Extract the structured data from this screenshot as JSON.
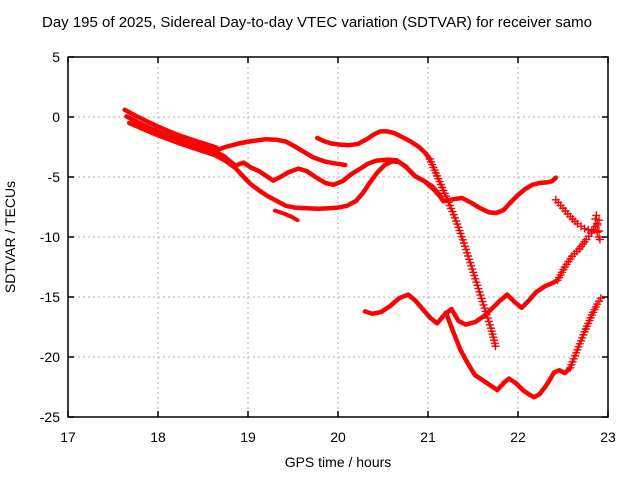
{
  "header": {
    "title": "Day 195 of 2025, Sidereal Day-to-day VTEC variation (SDTVAR) for receiver samo"
  },
  "chart_data": {
    "type": "line",
    "title": "Day 195 of 2025, Sidereal Day-to-day VTEC variation (SDTVAR) for receiver samo",
    "xlabel": "GPS time / hours",
    "ylabel": "SDTVAR / TECUs",
    "xlim": [
      17,
      23
    ],
    "ylim": [
      -25,
      5
    ],
    "xticks": [
      17,
      18,
      19,
      20,
      21,
      22,
      23
    ],
    "yticks": [
      5,
      0,
      -5,
      -10,
      -15,
      -20,
      -25
    ],
    "grid": true,
    "legend_position": "none",
    "series_color": "#ff0000",
    "grid_color": "#b0b0b0",
    "border_color": "#000000",
    "series": [
      {
        "name": "rising-bundle-upper",
        "style": "line",
        "width": 4.5,
        "points": [
          [
            17.63,
            0.6
          ],
          [
            17.74,
            0.15
          ],
          [
            17.86,
            -0.3
          ],
          [
            18.0,
            -0.8
          ],
          [
            18.14,
            -1.25
          ],
          [
            18.28,
            -1.65
          ],
          [
            18.42,
            -2.0
          ],
          [
            18.55,
            -2.3
          ],
          [
            18.65,
            -2.55
          ]
        ]
      },
      {
        "name": "rising-bundle-mid",
        "style": "line",
        "width": 4.5,
        "points": [
          [
            17.65,
            0.05
          ],
          [
            17.78,
            -0.45
          ],
          [
            17.92,
            -0.95
          ],
          [
            18.06,
            -1.4
          ],
          [
            18.2,
            -1.8
          ],
          [
            18.34,
            -2.15
          ],
          [
            18.48,
            -2.5
          ],
          [
            18.6,
            -2.8
          ],
          [
            18.72,
            -3.2
          ],
          [
            18.86,
            -4.05
          ]
        ]
      },
      {
        "name": "rising-bundle-lower",
        "style": "line",
        "width": 4.5,
        "points": [
          [
            17.68,
            -0.5
          ],
          [
            17.82,
            -0.95
          ],
          [
            17.96,
            -1.4
          ],
          [
            18.1,
            -1.8
          ],
          [
            18.24,
            -2.2
          ],
          [
            18.38,
            -2.55
          ],
          [
            18.52,
            -2.9
          ],
          [
            18.64,
            -3.2
          ],
          [
            18.75,
            -3.65
          ],
          [
            18.86,
            -4.25
          ]
        ]
      },
      {
        "name": "upper-branch",
        "style": "line",
        "width": 4.5,
        "points": [
          [
            18.62,
            -2.85
          ],
          [
            18.75,
            -2.5
          ],
          [
            18.9,
            -2.2
          ],
          [
            19.05,
            -2.0
          ],
          [
            19.2,
            -1.85
          ],
          [
            19.32,
            -1.9
          ],
          [
            19.42,
            -2.05
          ],
          [
            19.52,
            -2.45
          ],
          [
            19.62,
            -2.9
          ],
          [
            19.72,
            -3.35
          ],
          [
            19.85,
            -3.7
          ],
          [
            19.95,
            -3.85
          ],
          [
            20.08,
            -4.0
          ]
        ]
      },
      {
        "name": "late-top-arc",
        "style": "line",
        "width": 4.5,
        "points": [
          [
            19.77,
            -1.75
          ],
          [
            19.84,
            -2.0
          ],
          [
            19.92,
            -2.2
          ],
          [
            20.02,
            -2.3
          ],
          [
            20.12,
            -2.35
          ],
          [
            20.22,
            -2.25
          ],
          [
            20.32,
            -1.85
          ],
          [
            20.4,
            -1.45
          ],
          [
            20.47,
            -1.2
          ],
          [
            20.55,
            -1.2
          ],
          [
            20.63,
            -1.35
          ],
          [
            20.72,
            -1.7
          ],
          [
            20.82,
            -2.1
          ],
          [
            20.9,
            -2.5
          ],
          [
            20.97,
            -3.0
          ],
          [
            21.02,
            -3.5
          ]
        ]
      },
      {
        "name": "late-top-arc-steep-fall",
        "style": "plus",
        "width": 1.4,
        "points": [
          [
            21.02,
            -3.5
          ],
          [
            21.1,
            -4.9
          ],
          [
            21.2,
            -6.6
          ],
          [
            21.3,
            -8.4
          ],
          [
            21.4,
            -10.5
          ],
          [
            21.48,
            -12.4
          ],
          [
            21.56,
            -14.3
          ],
          [
            21.64,
            -16.2
          ],
          [
            21.7,
            -17.6
          ],
          [
            21.75,
            -19.1
          ]
        ]
      },
      {
        "name": "mid-wavy-branch",
        "style": "line",
        "width": 4.5,
        "points": [
          [
            18.86,
            -4.05
          ],
          [
            18.95,
            -3.8
          ],
          [
            19.03,
            -4.2
          ],
          [
            19.12,
            -4.5
          ],
          [
            19.2,
            -4.9
          ],
          [
            19.28,
            -5.3
          ],
          [
            19.36,
            -5.0
          ],
          [
            19.45,
            -4.6
          ],
          [
            19.56,
            -4.3
          ],
          [
            19.65,
            -4.5
          ],
          [
            19.75,
            -5.0
          ],
          [
            19.86,
            -5.5
          ],
          [
            19.95,
            -5.65
          ],
          [
            20.05,
            -5.35
          ],
          [
            20.15,
            -4.75
          ],
          [
            20.25,
            -4.3
          ],
          [
            20.33,
            -3.9
          ],
          [
            20.42,
            -3.65
          ],
          [
            20.55,
            -3.55
          ],
          [
            20.65,
            -3.6
          ],
          [
            20.75,
            -4.1
          ],
          [
            20.85,
            -4.9
          ],
          [
            20.95,
            -5.3
          ],
          [
            21.05,
            -5.8
          ],
          [
            21.12,
            -6.4
          ],
          [
            21.17,
            -7.0
          ]
        ]
      },
      {
        "name": "deep-branch",
        "style": "line",
        "width": 4.5,
        "points": [
          [
            18.86,
            -4.25
          ],
          [
            18.94,
            -4.9
          ],
          [
            19.03,
            -5.6
          ],
          [
            19.12,
            -6.1
          ],
          [
            19.22,
            -6.6
          ],
          [
            19.32,
            -7.0
          ],
          [
            19.42,
            -7.4
          ],
          [
            19.52,
            -7.55
          ],
          [
            19.65,
            -7.6
          ],
          [
            19.78,
            -7.65
          ],
          [
            19.9,
            -7.6
          ],
          [
            20.0,
            -7.55
          ],
          [
            20.1,
            -7.4
          ],
          [
            20.2,
            -7.0
          ],
          [
            20.28,
            -6.3
          ],
          [
            20.36,
            -5.4
          ],
          [
            20.44,
            -4.6
          ],
          [
            20.52,
            -4.0
          ],
          [
            20.6,
            -3.7
          ],
          [
            20.68,
            -3.75
          ],
          [
            20.76,
            -4.2
          ],
          [
            20.86,
            -4.95
          ],
          [
            20.96,
            -5.35
          ],
          [
            21.06,
            -6.0
          ],
          [
            21.13,
            -6.6
          ],
          [
            21.17,
            -7.0
          ]
        ]
      },
      {
        "name": "deep-branch-end-tail",
        "style": "line",
        "width": 4,
        "points": [
          [
            19.3,
            -7.8
          ],
          [
            19.4,
            -8.05
          ],
          [
            19.48,
            -8.3
          ],
          [
            19.55,
            -8.6
          ]
        ]
      },
      {
        "name": "mid-arc-continuation",
        "style": "line",
        "width": 4.5,
        "points": [
          [
            21.17,
            -7.0
          ],
          [
            21.28,
            -6.85
          ],
          [
            21.38,
            -6.75
          ],
          [
            21.48,
            -7.15
          ],
          [
            21.58,
            -7.6
          ],
          [
            21.68,
            -7.95
          ],
          [
            21.76,
            -8.0
          ],
          [
            21.84,
            -7.75
          ],
          [
            21.92,
            -7.1
          ],
          [
            22.0,
            -6.5
          ],
          [
            22.08,
            -6.0
          ],
          [
            22.16,
            -5.65
          ],
          [
            22.24,
            -5.5
          ],
          [
            22.32,
            -5.45
          ],
          [
            22.38,
            -5.35
          ],
          [
            22.42,
            -5.05
          ]
        ]
      },
      {
        "name": "low-wavy-arc",
        "style": "line",
        "width": 4.5,
        "points": [
          [
            20.3,
            -16.2
          ],
          [
            20.38,
            -16.4
          ],
          [
            20.48,
            -16.25
          ],
          [
            20.58,
            -15.75
          ],
          [
            20.68,
            -15.1
          ],
          [
            20.78,
            -14.8
          ],
          [
            20.86,
            -15.3
          ],
          [
            20.94,
            -16.0
          ],
          [
            21.02,
            -16.7
          ],
          [
            21.1,
            -17.2
          ],
          [
            21.18,
            -16.5
          ],
          [
            21.26,
            -16.0
          ],
          [
            21.34,
            -17.0
          ],
          [
            21.42,
            -17.3
          ],
          [
            21.52,
            -17.1
          ],
          [
            21.62,
            -16.6
          ],
          [
            21.72,
            -15.9
          ],
          [
            21.8,
            -15.3
          ],
          [
            21.88,
            -14.8
          ],
          [
            21.96,
            -15.4
          ],
          [
            22.04,
            -15.9
          ],
          [
            22.12,
            -15.3
          ],
          [
            22.2,
            -14.6
          ],
          [
            22.3,
            -14.1
          ],
          [
            22.38,
            -13.85
          ],
          [
            22.44,
            -13.6
          ]
        ]
      },
      {
        "name": "low-wavy-arc-steep-rise",
        "style": "plus",
        "width": 1.4,
        "points": [
          [
            22.44,
            -13.6
          ],
          [
            22.52,
            -12.5
          ],
          [
            22.6,
            -11.6
          ],
          [
            22.68,
            -11.0
          ],
          [
            22.76,
            -10.2
          ],
          [
            22.84,
            -9.4
          ],
          [
            22.9,
            -8.6
          ]
        ]
      },
      {
        "name": "bottom-arc-fall",
        "style": "line",
        "width": 4.5,
        "points": [
          [
            21.2,
            -16.3
          ],
          [
            21.28,
            -17.9
          ],
          [
            21.36,
            -19.4
          ],
          [
            21.44,
            -20.5
          ],
          [
            21.52,
            -21.5
          ],
          [
            21.6,
            -21.9
          ],
          [
            21.68,
            -22.3
          ],
          [
            21.77,
            -22.75
          ],
          [
            21.85,
            -22.1
          ],
          [
            21.9,
            -21.8
          ],
          [
            21.98,
            -22.2
          ],
          [
            22.06,
            -22.8
          ],
          [
            22.14,
            -23.2
          ],
          [
            22.18,
            -23.35
          ],
          [
            22.24,
            -23.1
          ],
          [
            22.32,
            -22.3
          ],
          [
            22.4,
            -21.3
          ],
          [
            22.46,
            -21.1
          ],
          [
            22.52,
            -21.35
          ],
          [
            22.58,
            -20.9
          ]
        ]
      },
      {
        "name": "bottom-arc-steep-rise",
        "style": "plus",
        "width": 1.4,
        "points": [
          [
            22.58,
            -20.9
          ],
          [
            22.66,
            -19.4
          ],
          [
            22.74,
            -17.9
          ],
          [
            22.82,
            -16.5
          ],
          [
            22.88,
            -15.6
          ],
          [
            22.92,
            -15.1
          ]
        ]
      },
      {
        "name": "right-descending-arc",
        "style": "plus",
        "width": 1.4,
        "points": [
          [
            22.42,
            -6.9
          ],
          [
            22.5,
            -7.6
          ],
          [
            22.58,
            -8.3
          ],
          [
            22.66,
            -8.9
          ],
          [
            22.74,
            -9.3
          ],
          [
            22.82,
            -9.5
          ],
          [
            22.88,
            -9.6
          ]
        ]
      },
      {
        "name": "right-descending-arc-end-burst",
        "style": "points",
        "width": 1.4,
        "points": [
          [
            22.87,
            -8.2
          ],
          [
            22.86,
            -8.5
          ],
          [
            22.88,
            -9.0
          ],
          [
            22.9,
            -9.5
          ],
          [
            22.9,
            -10.0
          ],
          [
            22.91,
            -10.2
          ]
        ]
      }
    ]
  }
}
